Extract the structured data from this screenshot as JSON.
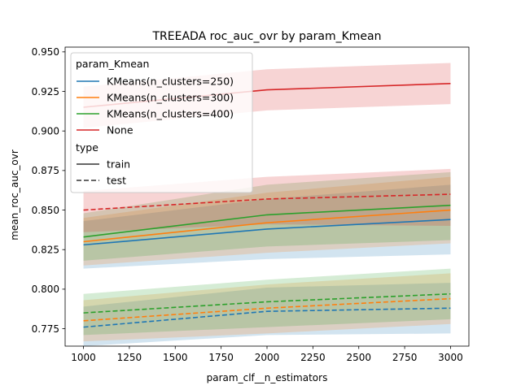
{
  "chart_data": {
    "type": "line",
    "title": "TREEADA roc_auc_ovr by param_Kmean",
    "xlabel": "param_clf__n_estimators",
    "ylabel": "mean_roc_auc_ovr",
    "xlim": [
      900,
      3100
    ],
    "ylim": [
      0.764,
      0.953
    ],
    "x_ticks": [
      1000,
      1250,
      1500,
      1750,
      2000,
      2250,
      2500,
      2750,
      3000
    ],
    "y_ticks": [
      0.775,
      0.8,
      0.825,
      0.85,
      0.875,
      0.9,
      0.925,
      0.95
    ],
    "y_tick_labels": [
      "0.775",
      "0.800",
      "0.825",
      "0.850",
      "0.875",
      "0.900",
      "0.925",
      "0.950"
    ],
    "grid": false,
    "legend": {
      "position": "top-left",
      "title_hue": "param_Kmean",
      "title_style": "type",
      "style_entries": [
        {
          "label": "train",
          "dash": "solid"
        },
        {
          "label": "test",
          "dash": "dashed"
        }
      ]
    },
    "x": [
      1000,
      2000,
      3000
    ],
    "series": [
      {
        "name": "KMeans(n_clusters=250)",
        "color": "#1f77b4",
        "style": "train",
        "values": [
          0.828,
          0.838,
          0.844
        ],
        "lower": [
          0.813,
          0.819,
          0.822
        ],
        "upper": [
          0.843,
          0.857,
          0.866
        ]
      },
      {
        "name": "KMeans(n_clusters=300)",
        "color": "#ff7f0e",
        "style": "train",
        "values": [
          0.83,
          0.842,
          0.85
        ],
        "lower": [
          0.815,
          0.823,
          0.829
        ],
        "upper": [
          0.845,
          0.861,
          0.871
        ]
      },
      {
        "name": "KMeans(n_clusters=400)",
        "color": "#2ca02c",
        "style": "train",
        "values": [
          0.833,
          0.847,
          0.853
        ],
        "lower": [
          0.818,
          0.827,
          0.831
        ],
        "upper": [
          0.848,
          0.866,
          0.874
        ]
      },
      {
        "name": "None",
        "color": "#d62728",
        "style": "train",
        "values": [
          0.915,
          0.926,
          0.93
        ],
        "lower": [
          0.902,
          0.913,
          0.917
        ],
        "upper": [
          0.928,
          0.939,
          0.943
        ]
      },
      {
        "name": "KMeans(n_clusters=250)",
        "color": "#1f77b4",
        "style": "test",
        "values": [
          0.776,
          0.786,
          0.788
        ],
        "lower": [
          0.764,
          0.771,
          0.772
        ],
        "upper": [
          0.789,
          0.801,
          0.804
        ]
      },
      {
        "name": "KMeans(n_clusters=300)",
        "color": "#ff7f0e",
        "style": "test",
        "values": [
          0.78,
          0.788,
          0.794
        ],
        "lower": [
          0.767,
          0.772,
          0.778
        ],
        "upper": [
          0.793,
          0.803,
          0.81
        ]
      },
      {
        "name": "KMeans(n_clusters=400)",
        "color": "#2ca02c",
        "style": "test",
        "values": [
          0.785,
          0.792,
          0.797
        ],
        "lower": [
          0.771,
          0.776,
          0.781
        ],
        "upper": [
          0.797,
          0.806,
          0.813
        ]
      },
      {
        "name": "None",
        "color": "#d62728",
        "style": "test",
        "values": [
          0.85,
          0.857,
          0.86
        ],
        "lower": [
          0.836,
          0.841,
          0.84
        ],
        "upper": [
          0.862,
          0.871,
          0.876
        ]
      }
    ]
  }
}
